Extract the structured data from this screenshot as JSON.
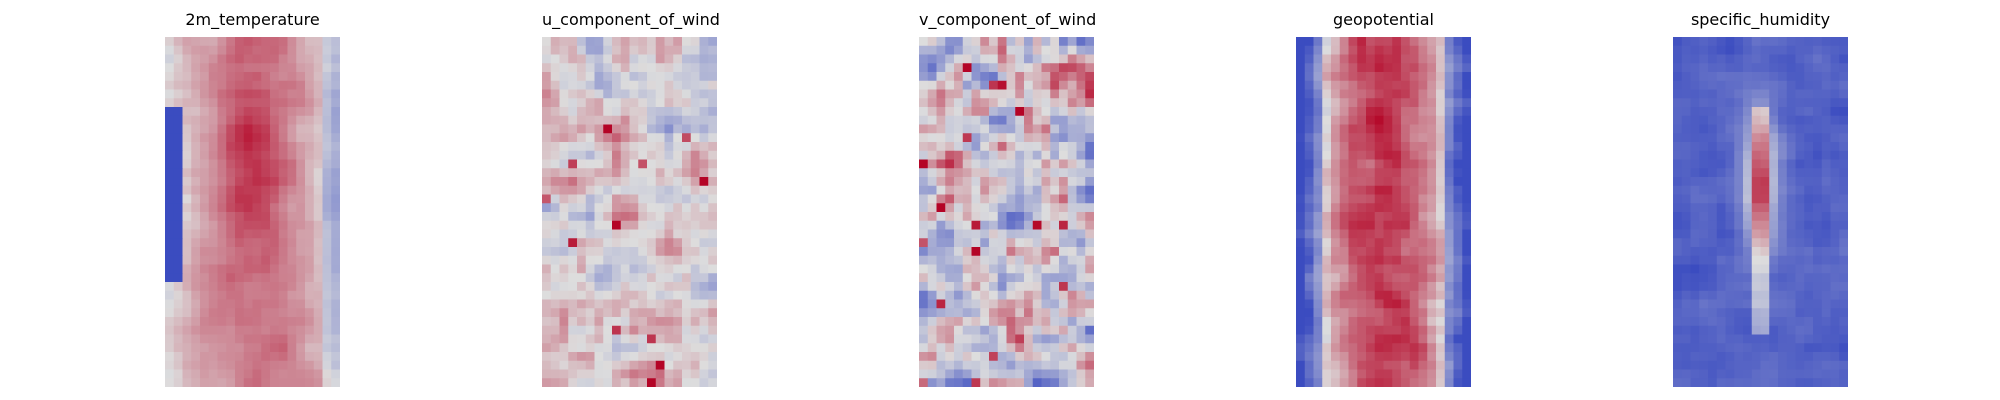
{
  "chart_data": [
    {
      "type": "heatmap",
      "title": "2m_temperature",
      "colormap": "coolwarm",
      "rows": 40,
      "cols": 20,
      "pattern": "warm_core",
      "axes_visible": false,
      "colors": {
        "low": "#3b4cc0",
        "mid": "#dddddd",
        "high": "#b40426"
      }
    },
    {
      "type": "heatmap",
      "title": "u_component_of_wind",
      "colormap": "coolwarm",
      "rows": 40,
      "cols": 20,
      "pattern": "weak_noise",
      "axes_visible": false,
      "colors": {
        "low": "#3b4cc0",
        "mid": "#dddddd",
        "high": "#b40426"
      }
    },
    {
      "type": "heatmap",
      "title": "v_component_of_wind",
      "colormap": "coolwarm",
      "rows": 40,
      "cols": 20,
      "pattern": "noise",
      "axes_visible": false,
      "colors": {
        "low": "#3b4cc0",
        "mid": "#dddddd",
        "high": "#b40426"
      }
    },
    {
      "type": "heatmap",
      "title": "geopotential",
      "colormap": "coolwarm",
      "rows": 40,
      "cols": 20,
      "pattern": "warm_band",
      "axes_visible": false,
      "colors": {
        "low": "#3b4cc0",
        "mid": "#dddddd",
        "high": "#b40426"
      }
    },
    {
      "type": "heatmap",
      "title": "specific_humidity",
      "colormap": "coolwarm",
      "rows": 40,
      "cols": 20,
      "pattern": "cold_with_spine",
      "axes_visible": false,
      "colors": {
        "low": "#3b4cc0",
        "mid": "#dddddd",
        "high": "#b40426"
      }
    }
  ]
}
